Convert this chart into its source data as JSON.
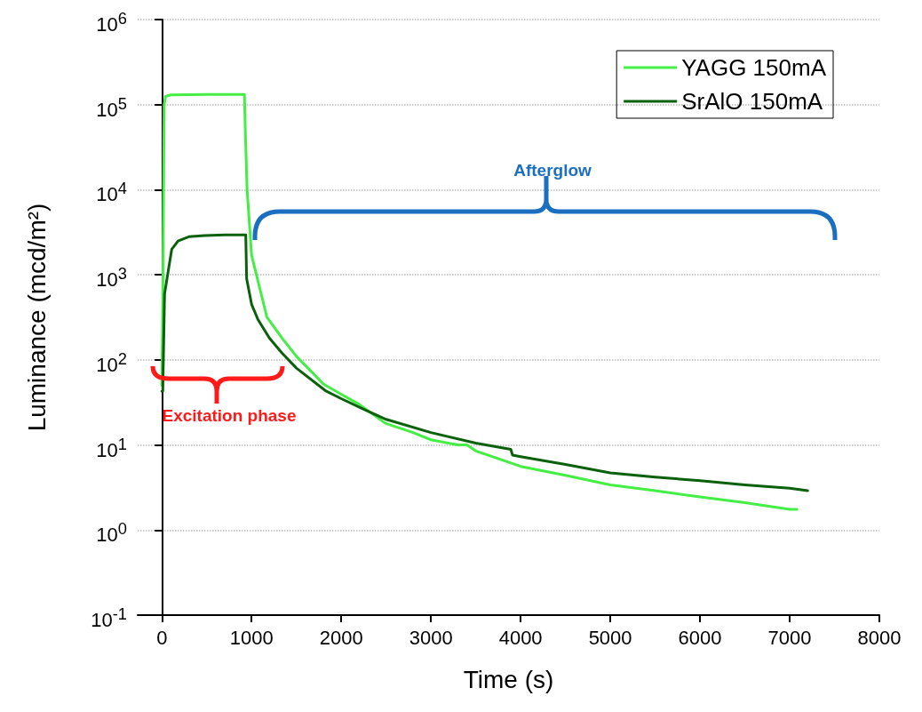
{
  "chart_data": {
    "type": "line",
    "xlabel": "Time (s)",
    "ylabel": "Luminance (mcd/m²)",
    "log": "y",
    "grid": "y",
    "legend": "top right",
    "line_style": "solid",
    "marker": "none",
    "xlim": [
      -270,
      8000
    ],
    "xticks": [
      0,
      1000,
      2000,
      3000,
      4000,
      5000,
      6000,
      7000,
      8000
    ],
    "ylim": [
      0.1,
      1000000
    ],
    "yticks": [
      {
        "value": 0.1,
        "label": "10$^{-1}$"
      },
      {
        "value": 1,
        "label": "10$^{0}$"
      },
      {
        "value": 10,
        "label": "10$^{1}$"
      },
      {
        "value": 100,
        "label": "10$^{2}$"
      },
      {
        "value": 1000,
        "label": "10$^{3}$"
      },
      {
        "value": 10000,
        "label": "10$^{4}$"
      },
      {
        "value": 100000,
        "label": "10$^{5}$"
      },
      {
        "value": 1000000,
        "label": "10$^{6}$"
      }
    ],
    "series": [
      {
        "name": "YAGG 150mA",
        "color": "#44ee44",
        "x": [
          0,
          10,
          25,
          40,
          100,
          500,
          920,
          930,
          950,
          1000,
          1170,
          1340,
          1500,
          1660,
          1800,
          1990,
          2200,
          2490,
          2800,
          3000,
          3300,
          3400,
          3500,
          4000,
          4500,
          5000,
          5500,
          6000,
          6500,
          7000,
          7080
        ],
        "values": [
          50,
          500,
          100000,
          125000,
          130000,
          132000,
          132000,
          50000,
          10000,
          1700,
          320,
          180,
          110,
          74,
          52,
          40,
          30,
          18,
          14,
          11.5,
          10,
          10,
          8.5,
          5.6,
          4.4,
          3.4,
          2.9,
          2.45,
          2.1,
          1.75,
          1.75
        ]
      },
      {
        "name": "SrAlO 150mA",
        "color": "#0b610b",
        "x": [
          0,
          10,
          30,
          110,
          180,
          300,
          475,
          700,
          935,
          945,
          1000,
          1070,
          1200,
          1340,
          1500,
          1830,
          2000,
          2260,
          2500,
          3000,
          3500,
          3890,
          3910,
          4000,
          4500,
          5000,
          5500,
          6000,
          6500,
          7000,
          7200
        ],
        "values": [
          43,
          43,
          600,
          2000,
          2500,
          2800,
          2900,
          2950,
          2950,
          900,
          450,
          300,
          180,
          120,
          80,
          43,
          35,
          26,
          20,
          14,
          10.5,
          8.9,
          7.6,
          7.3,
          5.9,
          4.7,
          4.2,
          3.8,
          3.4,
          3.1,
          2.9
        ]
      }
    ],
    "annotations": [
      "Excitation phase",
      "Afterglow"
    ]
  }
}
